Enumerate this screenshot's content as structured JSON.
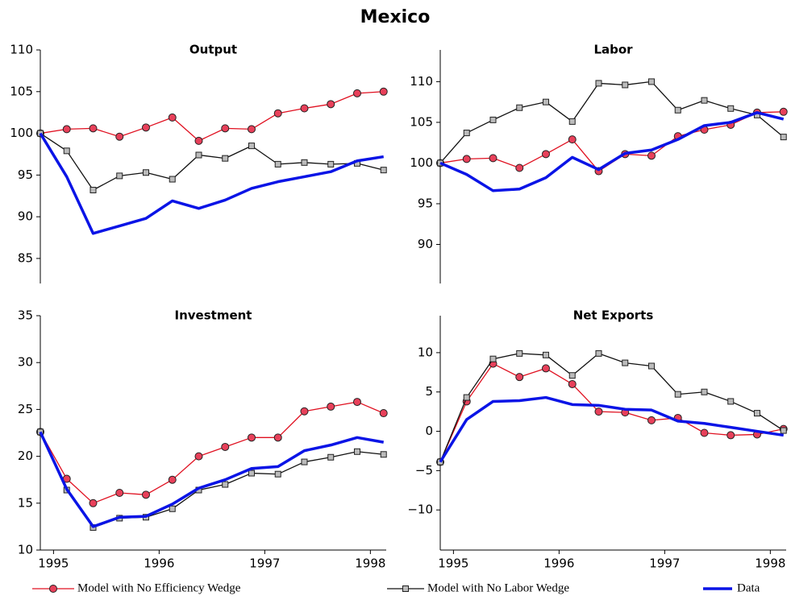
{
  "title": "Mexico",
  "chart_data": [
    {
      "type": "line",
      "title": "Output",
      "x": [
        1994.875,
        1995.125,
        1995.375,
        1995.625,
        1995.875,
        1996.125,
        1996.375,
        1996.625,
        1996.875,
        1997.125,
        1997.375,
        1997.625,
        1997.875,
        1998.125
      ],
      "xlim": [
        1994.875,
        1998.15
      ],
      "ylim": [
        82,
        110
      ],
      "yticks": [
        85,
        90,
        95,
        100,
        105,
        110
      ],
      "series": [
        {
          "name": "Model with No Efficiency Wedge",
          "color": "#e01020",
          "marker": "circle",
          "values": [
            100,
            100.5,
            100.6,
            99.6,
            100.7,
            101.9,
            99.1,
            100.6,
            100.5,
            102.4,
            103.0,
            103.5,
            104.8,
            105.0
          ]
        },
        {
          "name": "Model with No Labor Wedge",
          "color": "#111111",
          "marker": "square",
          "values": [
            100,
            97.9,
            93.2,
            94.9,
            95.3,
            94.5,
            97.4,
            97.0,
            98.5,
            96.3,
            96.5,
            96.3,
            96.4,
            95.6
          ]
        },
        {
          "name": "Data",
          "color": "#0a14e6",
          "values": [
            100,
            94.8,
            88.0,
            88.9,
            89.8,
            91.9,
            91.0,
            92.0,
            93.4,
            94.2,
            94.8,
            95.4,
            96.7,
            97.2
          ]
        }
      ]
    },
    {
      "type": "line",
      "title": "Labor",
      "x": [
        1994.875,
        1995.125,
        1995.375,
        1995.625,
        1995.875,
        1996.125,
        1996.375,
        1996.625,
        1996.875,
        1997.125,
        1997.375,
        1997.625,
        1997.875,
        1998.125
      ],
      "xlim": [
        1994.875,
        1998.15
      ],
      "ylim": [
        85.2,
        113.9
      ],
      "yticks": [
        90,
        95,
        100,
        105,
        110
      ],
      "series": [
        {
          "name": "Model with No Efficiency Wedge",
          "color": "#e01020",
          "marker": "circle",
          "values": [
            100,
            100.5,
            100.6,
            99.4,
            101.1,
            102.9,
            99.0,
            101.1,
            100.9,
            103.3,
            104.1,
            104.7,
            106.2,
            106.3
          ]
        },
        {
          "name": "Model with No Labor Wedge",
          "color": "#111111",
          "marker": "square",
          "values": [
            100,
            103.7,
            105.3,
            106.8,
            107.5,
            105.1,
            109.8,
            109.6,
            110.0,
            106.5,
            107.7,
            106.7,
            105.9,
            103.2
          ]
        },
        {
          "name": "Data",
          "color": "#0a14e6",
          "values": [
            100,
            98.6,
            96.6,
            96.8,
            98.2,
            100.7,
            99.2,
            101.2,
            101.6,
            102.9,
            104.6,
            105.0,
            106.2,
            105.4
          ]
        }
      ]
    },
    {
      "type": "line",
      "title": "Investment",
      "x": [
        1994.875,
        1995.125,
        1995.375,
        1995.625,
        1995.875,
        1996.125,
        1996.375,
        1996.625,
        1996.875,
        1997.125,
        1997.375,
        1997.625,
        1997.875,
        1998.125
      ],
      "xlim": [
        1994.875,
        1998.15
      ],
      "xticks": [
        1995,
        1996,
        1997,
        1998
      ],
      "ylim": [
        10,
        35
      ],
      "yticks": [
        10,
        15,
        20,
        25,
        30,
        35
      ],
      "series": [
        {
          "name": "Model with No Efficiency Wedge",
          "color": "#e01020",
          "marker": "circle",
          "values": [
            22.6,
            17.6,
            15.0,
            16.1,
            15.9,
            17.5,
            20.0,
            21.0,
            22.0,
            22.0,
            24.8,
            25.3,
            25.8,
            24.6
          ]
        },
        {
          "name": "Model with No Labor Wedge",
          "color": "#111111",
          "marker": "square",
          "values": [
            22.6,
            16.4,
            12.4,
            13.4,
            13.5,
            14.4,
            16.4,
            17.0,
            18.2,
            18.1,
            19.4,
            19.9,
            20.5,
            20.2
          ]
        },
        {
          "name": "Data",
          "color": "#0a14e6",
          "values": [
            22.6,
            16.5,
            12.5,
            13.5,
            13.6,
            14.9,
            16.6,
            17.5,
            18.7,
            18.9,
            20.6,
            21.2,
            22.0,
            21.5
          ]
        }
      ]
    },
    {
      "type": "line",
      "title": "Net Exports",
      "x": [
        1994.875,
        1995.125,
        1995.375,
        1995.625,
        1995.875,
        1996.125,
        1996.375,
        1996.625,
        1996.875,
        1997.125,
        1997.375,
        1997.625,
        1997.875,
        1998.125
      ],
      "xlim": [
        1994.875,
        1998.15
      ],
      "xticks": [
        1995,
        1996,
        1997,
        1998
      ],
      "ylim": [
        -15.1,
        14.7
      ],
      "yticks": [
        {
          "value": -10,
          "label": "−10"
        },
        {
          "value": -5,
          "label": "−5"
        },
        0,
        5,
        10
      ],
      "series": [
        {
          "name": "Model with No Efficiency Wedge",
          "color": "#e01020",
          "marker": "circle",
          "values": [
            -3.9,
            3.8,
            8.6,
            6.9,
            8.0,
            6.0,
            2.5,
            2.4,
            1.4,
            1.7,
            -0.2,
            -0.5,
            -0.4,
            0.3
          ]
        },
        {
          "name": "Model with No Labor Wedge",
          "color": "#111111",
          "marker": "square",
          "values": [
            -3.9,
            4.3,
            9.2,
            9.9,
            9.7,
            7.1,
            9.9,
            8.7,
            8.3,
            4.7,
            5.0,
            3.8,
            2.3,
            0.1
          ]
        },
        {
          "name": "Data",
          "color": "#0a14e6",
          "values": [
            -3.9,
            1.5,
            3.8,
            3.9,
            4.3,
            3.4,
            3.3,
            2.8,
            2.7,
            1.3,
            1.0,
            0.5,
            0.0,
            -0.5
          ]
        }
      ]
    }
  ]
}
